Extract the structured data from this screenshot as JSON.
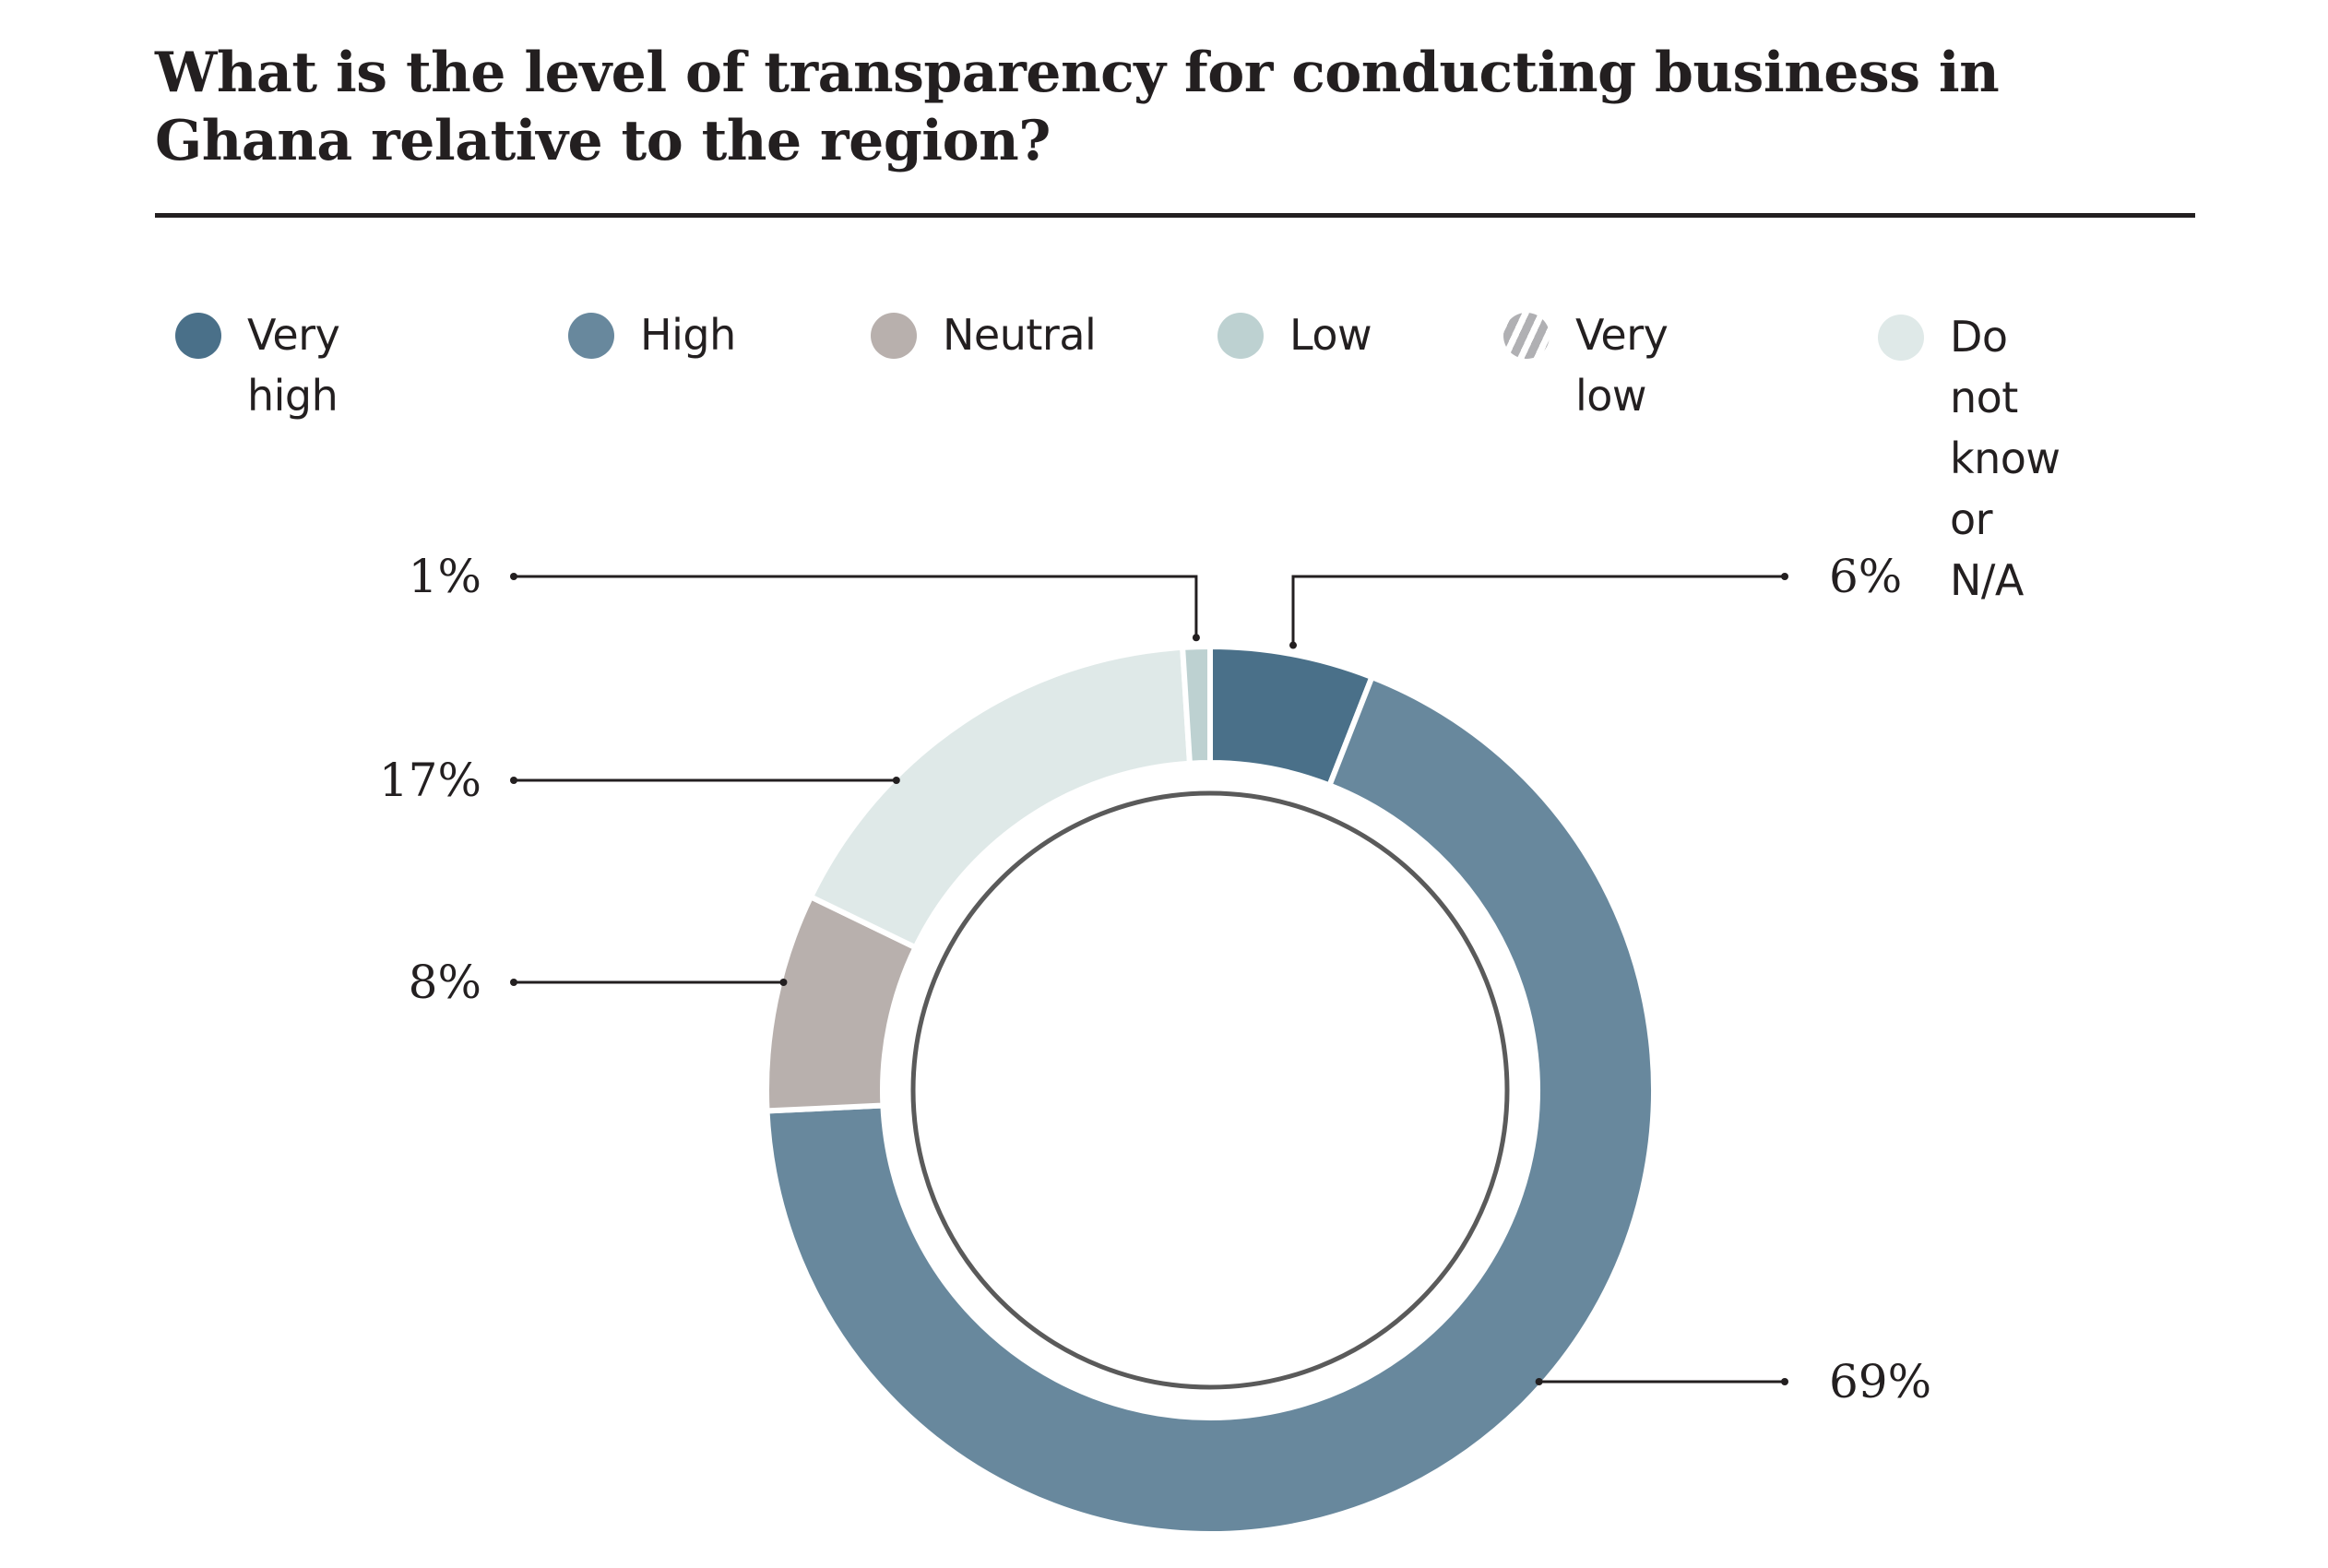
{
  "title": "What is the level of transparency for conducting business in Ghana relative to the region?",
  "legend": [
    {
      "label": "Very high",
      "color": "#4a7089",
      "pattern": "solid"
    },
    {
      "label": "High",
      "color": "#68889d",
      "pattern": "solid"
    },
    {
      "label": "Neutral",
      "color": "#b8b0ad",
      "pattern": "solid"
    },
    {
      "label": "Low",
      "color": "#bdd1d1",
      "pattern": "solid"
    },
    {
      "label": "Very low",
      "color": "#b0b0b3",
      "pattern": "hatched"
    },
    {
      "label": "Do not\nknow or\nN/A",
      "color": "#dfe9e8",
      "pattern": "solid"
    }
  ],
  "chart_data": {
    "type": "pie",
    "variant": "donut",
    "title": "What is the level of transparency for conducting business in Ghana relative to the region?",
    "unit": "%",
    "start": "top",
    "direction": "clockwise",
    "slices": [
      {
        "name": "Very high",
        "value": 6,
        "label": "6%",
        "color": "#4a7089"
      },
      {
        "name": "High",
        "value": 69,
        "label": "69%",
        "color": "#68889d"
      },
      {
        "name": "Neutral",
        "value": 8,
        "label": "8%",
        "color": "#b8b0ad"
      },
      {
        "name": "Very low",
        "value": 0,
        "label": "",
        "color": "#b0b0b3"
      },
      {
        "name": "Do not know or N/A",
        "value": 17,
        "label": "17%",
        "color": "#dfe9e8"
      },
      {
        "name": "Low",
        "value": 1,
        "label": "1%",
        "color": "#bdd1d1"
      }
    ],
    "legend_position": "top",
    "inner_ring_color": "#5a5a5a"
  }
}
